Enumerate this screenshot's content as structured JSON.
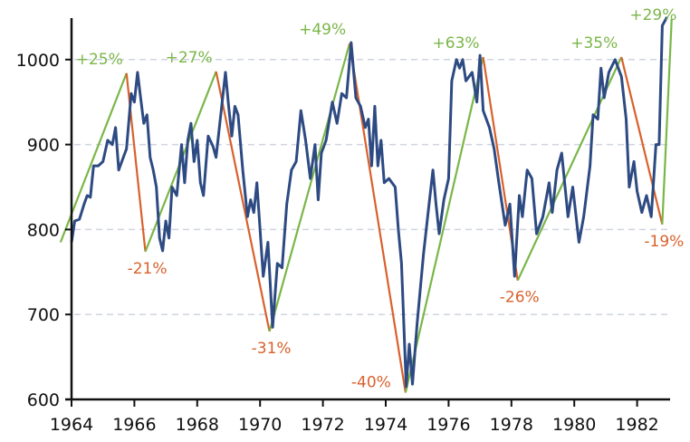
{
  "chart_data": {
    "type": "line",
    "title": "",
    "xlabel": "",
    "ylabel": "",
    "xlim": [
      1964,
      1983
    ],
    "ylim": [
      600,
      1050
    ],
    "x_ticks": [
      "1964",
      "1966",
      "1968",
      "1970",
      "1972",
      "1974",
      "1976",
      "1978",
      "1980",
      "1982"
    ],
    "y_ticks": [
      "600",
      "700",
      "800",
      "900",
      "1000"
    ],
    "grid": "horizontal dashed",
    "colors": {
      "series": "#2d4a82",
      "up": "#7ab648",
      "down": "#d8612c",
      "grid": "#cfd4e2"
    },
    "series": [
      {
        "points": [
          [
            1964.0,
            785
          ],
          [
            1964.1,
            810
          ],
          [
            1964.25,
            812
          ],
          [
            1964.4,
            830
          ],
          [
            1964.5,
            840
          ],
          [
            1964.6,
            838
          ],
          [
            1964.7,
            875
          ],
          [
            1964.85,
            875
          ],
          [
            1965.0,
            880
          ],
          [
            1965.15,
            905
          ],
          [
            1965.3,
            900
          ],
          [
            1965.4,
            920
          ],
          [
            1965.5,
            870
          ],
          [
            1965.6,
            880
          ],
          [
            1965.75,
            895
          ],
          [
            1965.9,
            960
          ],
          [
            1966.0,
            950
          ],
          [
            1966.1,
            985
          ],
          [
            1966.2,
            955
          ],
          [
            1966.3,
            925
          ],
          [
            1966.4,
            935
          ],
          [
            1966.5,
            885
          ],
          [
            1966.6,
            870
          ],
          [
            1966.7,
            850
          ],
          [
            1966.8,
            790
          ],
          [
            1966.9,
            775
          ],
          [
            1967.0,
            810
          ],
          [
            1967.1,
            790
          ],
          [
            1967.2,
            850
          ],
          [
            1967.35,
            840
          ],
          [
            1967.5,
            900
          ],
          [
            1967.6,
            855
          ],
          [
            1967.7,
            905
          ],
          [
            1967.8,
            925
          ],
          [
            1967.9,
            880
          ],
          [
            1968.0,
            905
          ],
          [
            1968.1,
            855
          ],
          [
            1968.2,
            840
          ],
          [
            1968.35,
            910
          ],
          [
            1968.5,
            898
          ],
          [
            1968.6,
            885
          ],
          [
            1968.75,
            935
          ],
          [
            1968.9,
            985
          ],
          [
            1969.0,
            945
          ],
          [
            1969.1,
            910
          ],
          [
            1969.2,
            945
          ],
          [
            1969.3,
            935
          ],
          [
            1969.45,
            870
          ],
          [
            1969.6,
            815
          ],
          [
            1969.7,
            835
          ],
          [
            1969.8,
            820
          ],
          [
            1969.9,
            855
          ],
          [
            1970.0,
            800
          ],
          [
            1970.1,
            745
          ],
          [
            1970.25,
            785
          ],
          [
            1970.4,
            685
          ],
          [
            1970.55,
            760
          ],
          [
            1970.7,
            755
          ],
          [
            1970.85,
            830
          ],
          [
            1971.0,
            870
          ],
          [
            1971.15,
            880
          ],
          [
            1971.3,
            940
          ],
          [
            1971.45,
            905
          ],
          [
            1971.6,
            860
          ],
          [
            1971.75,
            900
          ],
          [
            1971.85,
            835
          ],
          [
            1971.95,
            890
          ],
          [
            1972.1,
            905
          ],
          [
            1972.3,
            950
          ],
          [
            1972.45,
            925
          ],
          [
            1972.6,
            960
          ],
          [
            1972.75,
            955
          ],
          [
            1972.9,
            1020
          ],
          [
            1973.05,
            955
          ],
          [
            1973.2,
            945
          ],
          [
            1973.35,
            920
          ],
          [
            1973.45,
            930
          ],
          [
            1973.55,
            875
          ],
          [
            1973.65,
            945
          ],
          [
            1973.75,
            875
          ],
          [
            1973.85,
            905
          ],
          [
            1973.95,
            855
          ],
          [
            1974.1,
            860
          ],
          [
            1974.3,
            850
          ],
          [
            1974.4,
            800
          ],
          [
            1974.5,
            760
          ],
          [
            1974.65,
            615
          ],
          [
            1974.75,
            665
          ],
          [
            1974.85,
            618
          ],
          [
            1975.0,
            690
          ],
          [
            1975.2,
            770
          ],
          [
            1975.35,
            820
          ],
          [
            1975.5,
            870
          ],
          [
            1975.6,
            830
          ],
          [
            1975.7,
            795
          ],
          [
            1975.85,
            835
          ],
          [
            1976.0,
            860
          ],
          [
            1976.1,
            975
          ],
          [
            1976.25,
            1000
          ],
          [
            1976.35,
            990
          ],
          [
            1976.45,
            1000
          ],
          [
            1976.55,
            975
          ],
          [
            1976.75,
            985
          ],
          [
            1976.9,
            950
          ],
          [
            1977.0,
            1005
          ],
          [
            1977.1,
            940
          ],
          [
            1977.3,
            920
          ],
          [
            1977.45,
            895
          ],
          [
            1977.6,
            855
          ],
          [
            1977.8,
            805
          ],
          [
            1977.95,
            830
          ],
          [
            1978.1,
            745
          ],
          [
            1978.25,
            840
          ],
          [
            1978.35,
            815
          ],
          [
            1978.5,
            870
          ],
          [
            1978.65,
            860
          ],
          [
            1978.8,
            795
          ],
          [
            1979.0,
            815
          ],
          [
            1979.2,
            855
          ],
          [
            1979.3,
            820
          ],
          [
            1979.45,
            870
          ],
          [
            1979.6,
            890
          ],
          [
            1979.8,
            815
          ],
          [
            1979.95,
            850
          ],
          [
            1980.15,
            785
          ],
          [
            1980.3,
            815
          ],
          [
            1980.5,
            875
          ],
          [
            1980.6,
            935
          ],
          [
            1980.75,
            930
          ],
          [
            1980.85,
            990
          ],
          [
            1980.95,
            955
          ],
          [
            1981.1,
            985
          ],
          [
            1981.3,
            1000
          ],
          [
            1981.5,
            980
          ],
          [
            1981.65,
            930
          ],
          [
            1981.75,
            850
          ],
          [
            1981.9,
            880
          ],
          [
            1982.0,
            845
          ],
          [
            1982.15,
            820
          ],
          [
            1982.3,
            840
          ],
          [
            1982.45,
            815
          ],
          [
            1982.6,
            900
          ],
          [
            1982.7,
            900
          ],
          [
            1982.8,
            1040
          ],
          [
            1982.95,
            1050
          ]
        ]
      }
    ],
    "swings": [
      {
        "from": [
          1963.65,
          785
        ],
        "to": [
          1965.75,
          984
        ],
        "label": "+25%",
        "dir": "up"
      },
      {
        "from": [
          1965.75,
          984
        ],
        "to": [
          1966.35,
          774
        ],
        "label": "-21%",
        "dir": "down"
      },
      {
        "from": [
          1966.35,
          774
        ],
        "to": [
          1968.6,
          986
        ],
        "label": "+27%",
        "dir": "up"
      },
      {
        "from": [
          1968.6,
          986
        ],
        "to": [
          1970.3,
          680
        ],
        "label": "-31%",
        "dir": "down"
      },
      {
        "from": [
          1970.3,
          680
        ],
        "to": [
          1972.85,
          1019
        ],
        "label": "+49%",
        "dir": "up"
      },
      {
        "from": [
          1972.85,
          1019
        ],
        "to": [
          1974.63,
          608
        ],
        "label": "-40%",
        "dir": "down"
      },
      {
        "from": [
          1974.63,
          608
        ],
        "to": [
          1977.1,
          1003
        ],
        "label": "+63%",
        "dir": "up"
      },
      {
        "from": [
          1977.1,
          1003
        ],
        "to": [
          1978.2,
          740
        ],
        "label": "-26%",
        "dir": "down"
      },
      {
        "from": [
          1978.2,
          740
        ],
        "to": [
          1981.5,
          1003
        ],
        "label": "+35%",
        "dir": "up"
      },
      {
        "from": [
          1981.5,
          1003
        ],
        "to": [
          1982.8,
          806
        ],
        "label": "-19%",
        "dir": "down"
      },
      {
        "from": [
          1982.8,
          806
        ],
        "to": [
          1983.1,
          1048
        ],
        "label": "+29%",
        "dir": "up"
      }
    ]
  }
}
